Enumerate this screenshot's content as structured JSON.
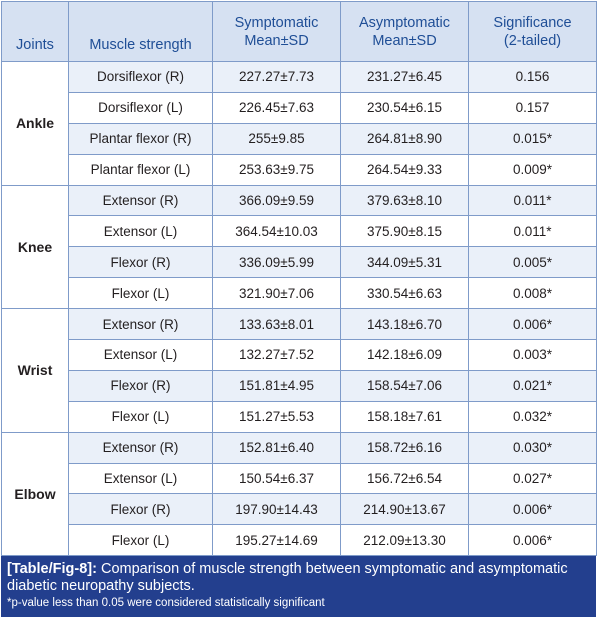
{
  "table": {
    "headers": {
      "joints": "Joints",
      "muscle": "Muscle strength",
      "symptomatic": [
        "Symptomatic",
        "Mean±SD"
      ],
      "asymptomatic": [
        "Asymptomatic",
        "Mean±SD"
      ],
      "significance": [
        "Significance",
        "(2-tailed)"
      ]
    },
    "groups": [
      {
        "joint": "Ankle",
        "rows": [
          {
            "muscle": "Dorsiflexor (R)",
            "symptomatic": "227.27±7.73",
            "asymptomatic": "231.27±6.45",
            "significance": "0.156"
          },
          {
            "muscle": "Dorsiflexor (L)",
            "symptomatic": "226.45±7.63",
            "asymptomatic": "230.54±6.15",
            "significance": "0.157"
          },
          {
            "muscle": "Plantar flexor (R)",
            "symptomatic": "255±9.85",
            "asymptomatic": "264.81±8.90",
            "significance": "0.015*"
          },
          {
            "muscle": "Plantar flexor (L)",
            "symptomatic": "253.63±9.75",
            "asymptomatic": "264.54±9.33",
            "significance": "0.009*"
          }
        ]
      },
      {
        "joint": "Knee",
        "rows": [
          {
            "muscle": "Extensor (R)",
            "symptomatic": "366.09±9.59",
            "asymptomatic": "379.63±8.10",
            "significance": "0.011*"
          },
          {
            "muscle": "Extensor (L)",
            "symptomatic": "364.54±10.03",
            "asymptomatic": "375.90±8.15",
            "significance": "0.011*"
          },
          {
            "muscle": "Flexor (R)",
            "symptomatic": "336.09±5.99",
            "asymptomatic": "344.09±5.31",
            "significance": "0.005*"
          },
          {
            "muscle": "Flexor (L)",
            "symptomatic": "321.90±7.06",
            "asymptomatic": "330.54±6.63",
            "significance": "0.008*"
          }
        ]
      },
      {
        "joint": "Wrist",
        "rows": [
          {
            "muscle": "Extensor (R)",
            "symptomatic": "133.63±8.01",
            "asymptomatic": "143.18±6.70",
            "significance": "0.006*"
          },
          {
            "muscle": "Extensor (L)",
            "symptomatic": "132.27±7.52",
            "asymptomatic": "142.18±6.09",
            "significance": "0.003*"
          },
          {
            "muscle": "Flexor (R)",
            "symptomatic": "151.81±4.95",
            "asymptomatic": "158.54±7.06",
            "significance": "0.021*"
          },
          {
            "muscle": "Flexor (L)",
            "symptomatic": "151.27±5.53",
            "asymptomatic": "158.18±7.61",
            "significance": "0.032*"
          }
        ]
      },
      {
        "joint": "Elbow",
        "rows": [
          {
            "muscle": "Extensor (R)",
            "symptomatic": "152.81±6.40",
            "asymptomatic": "158.72±6.16",
            "significance": "0.030*"
          },
          {
            "muscle": "Extensor (L)",
            "symptomatic": "150.54±6.37",
            "asymptomatic": "156.72±6.54",
            "significance": "0.027*"
          },
          {
            "muscle": "Flexor (R)",
            "symptomatic": "197.90±14.43",
            "asymptomatic": "214.90±13.67",
            "significance": "0.006*"
          },
          {
            "muscle": "Flexor (L)",
            "symptomatic": "195.27±14.69",
            "asymptomatic": "212.09±13.30",
            "significance": "0.006*"
          }
        ]
      }
    ]
  },
  "caption": {
    "label": "[Table/Fig-8]:",
    "text": "Comparison of muscle strength between symptomatic and asymptomatic diabetic neuropathy subjects.",
    "note": "*p-value less than 0.05 were considered statistically significant"
  },
  "colors": {
    "header_bg": "#d6e1f2",
    "header_text": "#1f4e96",
    "stripe_bg": "#eaf0f9",
    "border": "#7f9bc9",
    "caption_bg": "#233f8e"
  }
}
